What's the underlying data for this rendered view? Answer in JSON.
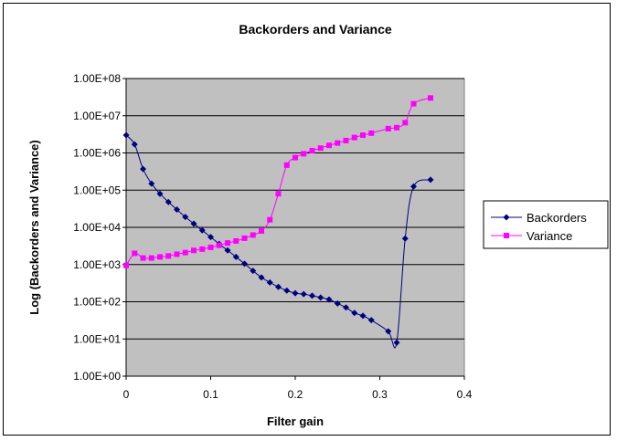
{
  "chart_data": {
    "type": "scatter",
    "title": "Backorders and Variance",
    "xlabel": "Filter gain",
    "ylabel": "Log (Backorders and Variance)",
    "xlim": [
      0,
      0.4
    ],
    "ylim": [
      1,
      100000000
    ],
    "y_scale": "log",
    "x_ticks": [
      "0",
      "0.1",
      "0.2",
      "0.3",
      "0.4"
    ],
    "y_ticks": [
      "1.00E+00",
      "1.00E+01",
      "1.00E+02",
      "1.00E+03",
      "1.00E+04",
      "1.00E+05",
      "1.00E+06",
      "1.00E+07",
      "1.00E+08"
    ],
    "grid": "horizontal",
    "plot_background": "#c0c0c0",
    "legend_position": "right",
    "series": [
      {
        "name": "Backorders",
        "color": "#000080",
        "marker": "diamond",
        "x": [
          0,
          0.01,
          0.02,
          0.03,
          0.04,
          0.05,
          0.06,
          0.07,
          0.08,
          0.09,
          0.1,
          0.11,
          0.12,
          0.13,
          0.14,
          0.15,
          0.16,
          0.17,
          0.18,
          0.19,
          0.2,
          0.21,
          0.22,
          0.23,
          0.24,
          0.25,
          0.26,
          0.27,
          0.28,
          0.29,
          0.31,
          0.32,
          0.33,
          0.34,
          0.36
        ],
        "y": [
          3000000,
          1700000,
          370000,
          150000,
          80000,
          48000,
          30000,
          19000,
          12500,
          8300,
          5500,
          3600,
          2400,
          1600,
          1050,
          680,
          450,
          330,
          250,
          200,
          170,
          160,
          145,
          130,
          115,
          90,
          70,
          50,
          42,
          32,
          16,
          8,
          5000,
          125000,
          190000
        ]
      },
      {
        "name": "Variance",
        "color": "#ff00ff",
        "marker": "square",
        "x": [
          0,
          0.01,
          0.02,
          0.03,
          0.04,
          0.05,
          0.06,
          0.07,
          0.08,
          0.09,
          0.1,
          0.11,
          0.12,
          0.13,
          0.14,
          0.15,
          0.16,
          0.17,
          0.18,
          0.19,
          0.2,
          0.21,
          0.22,
          0.23,
          0.24,
          0.25,
          0.26,
          0.27,
          0.28,
          0.29,
          0.31,
          0.32,
          0.33,
          0.34,
          0.36
        ],
        "y": [
          950,
          2000,
          1500,
          1500,
          1600,
          1700,
          1900,
          2100,
          2400,
          2600,
          2900,
          3300,
          3800,
          4300,
          5100,
          6200,
          8000,
          16000,
          80000,
          470000,
          750000,
          950000,
          1150000,
          1350000,
          1600000,
          1850000,
          2150000,
          2600000,
          3000000,
          3400000,
          4500000,
          4800000,
          6500000,
          21000000,
          30000000
        ]
      }
    ]
  }
}
